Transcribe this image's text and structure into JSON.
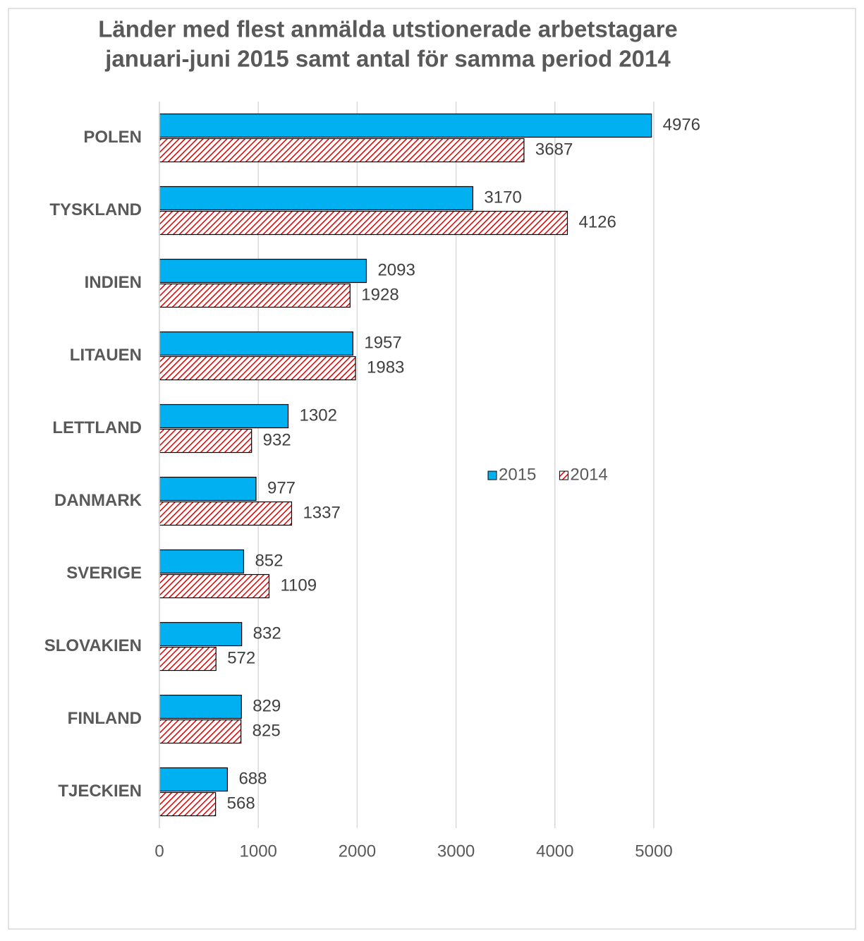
{
  "chart_data": {
    "type": "hbar",
    "title": [
      "Länder med flest anmälda utstionerade arbetstagare",
      "januari-juni 2015 samt antal för samma period 2014"
    ],
    "categories": [
      "POLEN",
      "TYSKLAND",
      "INDIEN",
      "LITAUEN",
      "LETTLAND",
      "DANMARK",
      "SVERIGE",
      "SLOVAKIEN",
      "FINLAND",
      "TJECKIEN"
    ],
    "series": [
      {
        "name": "2015",
        "color": "#00b0f0",
        "pattern": "solid",
        "values": [
          4976,
          3170,
          2093,
          1957,
          1302,
          977,
          852,
          832,
          829,
          688
        ]
      },
      {
        "name": "2014",
        "color": "#e00000",
        "pattern": "diagonal",
        "values": [
          3687,
          4126,
          1928,
          1983,
          932,
          1337,
          1109,
          572,
          825,
          568
        ]
      }
    ],
    "xlim": [
      0,
      5000
    ],
    "xticks": [
      0,
      1000,
      2000,
      3000,
      4000,
      5000
    ],
    "grid": true,
    "legend": "right"
  }
}
